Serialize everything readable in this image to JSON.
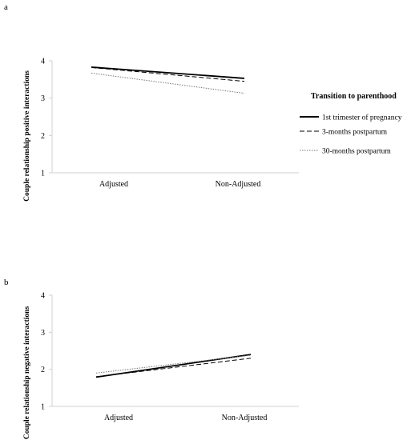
{
  "chart_data": [
    {
      "panel_label": "a",
      "type": "line",
      "categories": [
        "Adjusted",
        "Non-Adjusted"
      ],
      "ylabel": "Couple relationship positive interactions",
      "ylim": [
        1,
        4
      ],
      "yticks": [
        "1",
        "2",
        "3",
        "4"
      ],
      "legend": {
        "title": "Transition to parenthood",
        "placement": "right"
      },
      "series": [
        {
          "name": "1st trimester of pregnancy",
          "values": [
            3.83,
            3.53
          ],
          "style": "solid",
          "color": "#000000"
        },
        {
          "name": "3-months postpartum",
          "values": [
            3.82,
            3.45
          ],
          "style": "dashed",
          "color": "#000000"
        },
        {
          "name": "30-months postpartum",
          "values": [
            3.67,
            3.13
          ],
          "style": "dotted",
          "color": "#777777"
        }
      ]
    },
    {
      "panel_label": "b",
      "type": "line",
      "categories": [
        "Adjusted",
        "Non-Adjusted"
      ],
      "ylabel": "Couple relationship negative interactions",
      "ylim": [
        1,
        4
      ],
      "yticks": [
        "1",
        "2",
        "3",
        "4"
      ],
      "series": [
        {
          "values": [
            1.79,
            2.4
          ],
          "style": "solid",
          "color": "#000000"
        },
        {
          "values": [
            1.8,
            2.3
          ],
          "style": "dashed",
          "color": "#000000"
        },
        {
          "values": [
            1.9,
            2.38
          ],
          "style": "dotted",
          "color": "#777777"
        }
      ]
    }
  ]
}
